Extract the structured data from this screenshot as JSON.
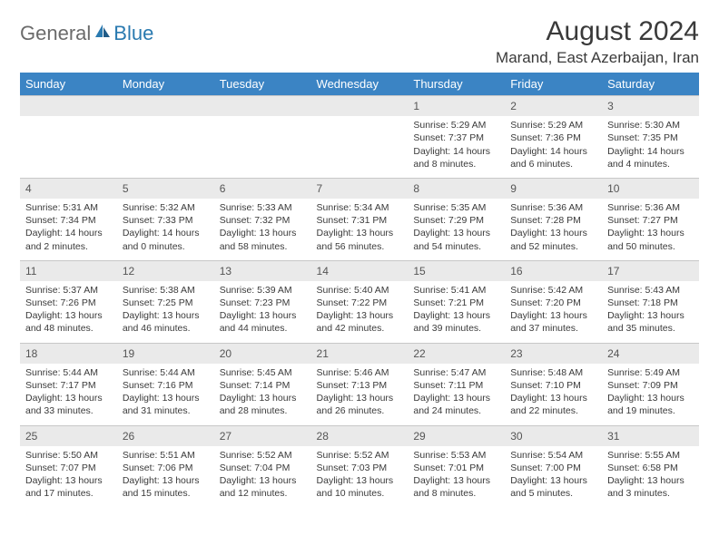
{
  "logo": {
    "text1": "General",
    "text2": "Blue"
  },
  "header": {
    "title": "August 2024",
    "location": "Marand, East Azerbaijan, Iran"
  },
  "colors": {
    "header_bg": "#3b84c4",
    "header_fg": "#ffffff",
    "daynum_bg": "#eaeaea",
    "text": "#3a3a3a"
  },
  "weekdays": [
    "Sunday",
    "Monday",
    "Tuesday",
    "Wednesday",
    "Thursday",
    "Friday",
    "Saturday"
  ],
  "weeks": [
    [
      null,
      null,
      null,
      null,
      {
        "n": "1",
        "sr": "5:29 AM",
        "ss": "7:37 PM",
        "dl": "14 hours and 8 minutes."
      },
      {
        "n": "2",
        "sr": "5:29 AM",
        "ss": "7:36 PM",
        "dl": "14 hours and 6 minutes."
      },
      {
        "n": "3",
        "sr": "5:30 AM",
        "ss": "7:35 PM",
        "dl": "14 hours and 4 minutes."
      }
    ],
    [
      {
        "n": "4",
        "sr": "5:31 AM",
        "ss": "7:34 PM",
        "dl": "14 hours and 2 minutes."
      },
      {
        "n": "5",
        "sr": "5:32 AM",
        "ss": "7:33 PM",
        "dl": "14 hours and 0 minutes."
      },
      {
        "n": "6",
        "sr": "5:33 AM",
        "ss": "7:32 PM",
        "dl": "13 hours and 58 minutes."
      },
      {
        "n": "7",
        "sr": "5:34 AM",
        "ss": "7:31 PM",
        "dl": "13 hours and 56 minutes."
      },
      {
        "n": "8",
        "sr": "5:35 AM",
        "ss": "7:29 PM",
        "dl": "13 hours and 54 minutes."
      },
      {
        "n": "9",
        "sr": "5:36 AM",
        "ss": "7:28 PM",
        "dl": "13 hours and 52 minutes."
      },
      {
        "n": "10",
        "sr": "5:36 AM",
        "ss": "7:27 PM",
        "dl": "13 hours and 50 minutes."
      }
    ],
    [
      {
        "n": "11",
        "sr": "5:37 AM",
        "ss": "7:26 PM",
        "dl": "13 hours and 48 minutes."
      },
      {
        "n": "12",
        "sr": "5:38 AM",
        "ss": "7:25 PM",
        "dl": "13 hours and 46 minutes."
      },
      {
        "n": "13",
        "sr": "5:39 AM",
        "ss": "7:23 PM",
        "dl": "13 hours and 44 minutes."
      },
      {
        "n": "14",
        "sr": "5:40 AM",
        "ss": "7:22 PM",
        "dl": "13 hours and 42 minutes."
      },
      {
        "n": "15",
        "sr": "5:41 AM",
        "ss": "7:21 PM",
        "dl": "13 hours and 39 minutes."
      },
      {
        "n": "16",
        "sr": "5:42 AM",
        "ss": "7:20 PM",
        "dl": "13 hours and 37 minutes."
      },
      {
        "n": "17",
        "sr": "5:43 AM",
        "ss": "7:18 PM",
        "dl": "13 hours and 35 minutes."
      }
    ],
    [
      {
        "n": "18",
        "sr": "5:44 AM",
        "ss": "7:17 PM",
        "dl": "13 hours and 33 minutes."
      },
      {
        "n": "19",
        "sr": "5:44 AM",
        "ss": "7:16 PM",
        "dl": "13 hours and 31 minutes."
      },
      {
        "n": "20",
        "sr": "5:45 AM",
        "ss": "7:14 PM",
        "dl": "13 hours and 28 minutes."
      },
      {
        "n": "21",
        "sr": "5:46 AM",
        "ss": "7:13 PM",
        "dl": "13 hours and 26 minutes."
      },
      {
        "n": "22",
        "sr": "5:47 AM",
        "ss": "7:11 PM",
        "dl": "13 hours and 24 minutes."
      },
      {
        "n": "23",
        "sr": "5:48 AM",
        "ss": "7:10 PM",
        "dl": "13 hours and 22 minutes."
      },
      {
        "n": "24",
        "sr": "5:49 AM",
        "ss": "7:09 PM",
        "dl": "13 hours and 19 minutes."
      }
    ],
    [
      {
        "n": "25",
        "sr": "5:50 AM",
        "ss": "7:07 PM",
        "dl": "13 hours and 17 minutes."
      },
      {
        "n": "26",
        "sr": "5:51 AM",
        "ss": "7:06 PM",
        "dl": "13 hours and 15 minutes."
      },
      {
        "n": "27",
        "sr": "5:52 AM",
        "ss": "7:04 PM",
        "dl": "13 hours and 12 minutes."
      },
      {
        "n": "28",
        "sr": "5:52 AM",
        "ss": "7:03 PM",
        "dl": "13 hours and 10 minutes."
      },
      {
        "n": "29",
        "sr": "5:53 AM",
        "ss": "7:01 PM",
        "dl": "13 hours and 8 minutes."
      },
      {
        "n": "30",
        "sr": "5:54 AM",
        "ss": "7:00 PM",
        "dl": "13 hours and 5 minutes."
      },
      {
        "n": "31",
        "sr": "5:55 AM",
        "ss": "6:58 PM",
        "dl": "13 hours and 3 minutes."
      }
    ]
  ],
  "labels": {
    "sunrise": "Sunrise:",
    "sunset": "Sunset:",
    "daylight": "Daylight:"
  }
}
